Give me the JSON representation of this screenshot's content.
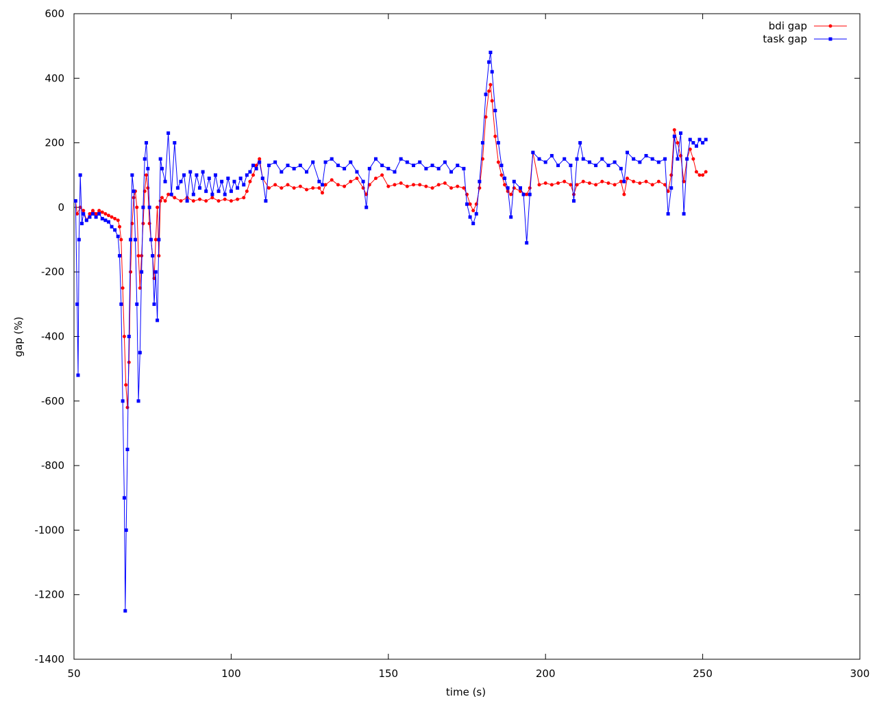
{
  "chart_data": {
    "type": "line",
    "xlabel": "time (s)",
    "ylabel": "gap (%)",
    "xlim": [
      50,
      300
    ],
    "ylim": [
      -1400,
      600
    ],
    "xticks": [
      50,
      100,
      150,
      200,
      250,
      300
    ],
    "yticks": [
      -1400,
      -1200,
      -1000,
      -800,
      -600,
      -400,
      -200,
      0,
      200,
      400,
      600
    ],
    "grid": false,
    "legend_position": "top-right",
    "series": [
      {
        "name": "bdi gap",
        "color": "#ff0000",
        "marker": "circle",
        "points": [
          [
            50.5,
            20
          ],
          [
            51,
            -20
          ],
          [
            52,
            0
          ],
          [
            53,
            -10
          ],
          [
            54,
            -40
          ],
          [
            55,
            -20
          ],
          [
            56,
            -10
          ],
          [
            57,
            -20
          ],
          [
            58,
            -10
          ],
          [
            59,
            -15
          ],
          [
            60,
            -20
          ],
          [
            61,
            -25
          ],
          [
            62,
            -30
          ],
          [
            63,
            -35
          ],
          [
            64,
            -40
          ],
          [
            64.5,
            -60
          ],
          [
            65,
            -100
          ],
          [
            65.5,
            -250
          ],
          [
            66,
            -400
          ],
          [
            66.5,
            -550
          ],
          [
            67,
            -620
          ],
          [
            67.5,
            -480
          ],
          [
            68,
            -200
          ],
          [
            68.5,
            -50
          ],
          [
            69,
            30
          ],
          [
            69.5,
            50
          ],
          [
            70,
            0
          ],
          [
            70.5,
            -150
          ],
          [
            71,
            -250
          ],
          [
            71.5,
            -150
          ],
          [
            72,
            -50
          ],
          [
            72.5,
            50
          ],
          [
            73,
            100
          ],
          [
            73.5,
            60
          ],
          [
            74,
            -50
          ],
          [
            74.5,
            -100
          ],
          [
            75,
            -150
          ],
          [
            75.5,
            -220
          ],
          [
            76,
            -100
          ],
          [
            76.5,
            0
          ],
          [
            77,
            -150
          ],
          [
            77.5,
            20
          ],
          [
            78,
            30
          ],
          [
            79,
            20
          ],
          [
            80,
            40
          ],
          [
            82,
            30
          ],
          [
            84,
            20
          ],
          [
            86,
            30
          ],
          [
            88,
            20
          ],
          [
            90,
            25
          ],
          [
            92,
            20
          ],
          [
            94,
            30
          ],
          [
            96,
            20
          ],
          [
            98,
            25
          ],
          [
            100,
            20
          ],
          [
            102,
            25
          ],
          [
            104,
            30
          ],
          [
            105,
            50
          ],
          [
            106,
            80
          ],
          [
            107,
            100
          ],
          [
            108,
            130
          ],
          [
            109,
            150
          ],
          [
            110,
            90
          ],
          [
            112,
            60
          ],
          [
            114,
            70
          ],
          [
            116,
            60
          ],
          [
            118,
            70
          ],
          [
            120,
            60
          ],
          [
            122,
            65
          ],
          [
            124,
            55
          ],
          [
            126,
            60
          ],
          [
            128,
            60
          ],
          [
            129,
            45
          ],
          [
            130,
            70
          ],
          [
            132,
            85
          ],
          [
            134,
            70
          ],
          [
            136,
            65
          ],
          [
            138,
            80
          ],
          [
            140,
            90
          ],
          [
            142,
            60
          ],
          [
            143,
            40
          ],
          [
            144,
            70
          ],
          [
            146,
            90
          ],
          [
            148,
            100
          ],
          [
            150,
            65
          ],
          [
            152,
            70
          ],
          [
            154,
            75
          ],
          [
            156,
            65
          ],
          [
            158,
            70
          ],
          [
            160,
            70
          ],
          [
            162,
            65
          ],
          [
            164,
            60
          ],
          [
            166,
            70
          ],
          [
            168,
            75
          ],
          [
            170,
            60
          ],
          [
            172,
            65
          ],
          [
            174,
            60
          ],
          [
            175,
            40
          ],
          [
            176,
            10
          ],
          [
            177,
            -10
          ],
          [
            178,
            10
          ],
          [
            179,
            60
          ],
          [
            180,
            150
          ],
          [
            181,
            280
          ],
          [
            182,
            360
          ],
          [
            182.5,
            380
          ],
          [
            183,
            330
          ],
          [
            184,
            220
          ],
          [
            185,
            140
          ],
          [
            186,
            100
          ],
          [
            187,
            70
          ],
          [
            188,
            50
          ],
          [
            189,
            40
          ],
          [
            190,
            60
          ],
          [
            192,
            50
          ],
          [
            194,
            40
          ],
          [
            195,
            60
          ],
          [
            196,
            170
          ],
          [
            198,
            70
          ],
          [
            200,
            75
          ],
          [
            202,
            70
          ],
          [
            204,
            75
          ],
          [
            206,
            80
          ],
          [
            208,
            70
          ],
          [
            209,
            40
          ],
          [
            210,
            70
          ],
          [
            212,
            80
          ],
          [
            214,
            75
          ],
          [
            216,
            70
          ],
          [
            218,
            80
          ],
          [
            220,
            75
          ],
          [
            222,
            70
          ],
          [
            224,
            80
          ],
          [
            225,
            40
          ],
          [
            226,
            90
          ],
          [
            228,
            80
          ],
          [
            230,
            75
          ],
          [
            232,
            80
          ],
          [
            234,
            70
          ],
          [
            236,
            80
          ],
          [
            238,
            70
          ],
          [
            239,
            50
          ],
          [
            240,
            100
          ],
          [
            241,
            240
          ],
          [
            242,
            200
          ],
          [
            243,
            160
          ],
          [
            244,
            80
          ],
          [
            245,
            150
          ],
          [
            246,
            180
          ],
          [
            247,
            150
          ],
          [
            248,
            110
          ],
          [
            249,
            100
          ],
          [
            250,
            100
          ],
          [
            251,
            110
          ]
        ]
      },
      {
        "name": "task gap",
        "color": "#0000ff",
        "marker": "square",
        "points": [
          [
            50.5,
            20
          ],
          [
            51,
            -300
          ],
          [
            51.3,
            -520
          ],
          [
            51.6,
            -100
          ],
          [
            52,
            100
          ],
          [
            52.5,
            -50
          ],
          [
            53,
            -20
          ],
          [
            54,
            -40
          ],
          [
            55,
            -30
          ],
          [
            56,
            -20
          ],
          [
            57,
            -30
          ],
          [
            58,
            -20
          ],
          [
            59,
            -35
          ],
          [
            60,
            -40
          ],
          [
            61,
            -45
          ],
          [
            62,
            -60
          ],
          [
            63,
            -70
          ],
          [
            64,
            -90
          ],
          [
            64.5,
            -150
          ],
          [
            65,
            -300
          ],
          [
            65.5,
            -600
          ],
          [
            66,
            -900
          ],
          [
            66.3,
            -1250
          ],
          [
            66.6,
            -1000
          ],
          [
            67,
            -750
          ],
          [
            67.5,
            -400
          ],
          [
            68,
            -100
          ],
          [
            68.5,
            100
          ],
          [
            69,
            50
          ],
          [
            69.5,
            -100
          ],
          [
            70,
            -300
          ],
          [
            70.5,
            -600
          ],
          [
            71,
            -450
          ],
          [
            71.5,
            -200
          ],
          [
            72,
            0
          ],
          [
            72.5,
            150
          ],
          [
            73,
            200
          ],
          [
            73.5,
            120
          ],
          [
            74,
            0
          ],
          [
            74.5,
            -100
          ],
          [
            75,
            -150
          ],
          [
            75.5,
            -300
          ],
          [
            76,
            -200
          ],
          [
            76.5,
            -350
          ],
          [
            77,
            -100
          ],
          [
            77.5,
            150
          ],
          [
            78,
            120
          ],
          [
            79,
            80
          ],
          [
            80,
            230
          ],
          [
            81,
            40
          ],
          [
            82,
            200
          ],
          [
            83,
            60
          ],
          [
            84,
            80
          ],
          [
            85,
            100
          ],
          [
            86,
            20
          ],
          [
            87,
            110
          ],
          [
            88,
            40
          ],
          [
            89,
            100
          ],
          [
            90,
            60
          ],
          [
            91,
            110
          ],
          [
            92,
            50
          ],
          [
            93,
            90
          ],
          [
            94,
            40
          ],
          [
            95,
            100
          ],
          [
            96,
            50
          ],
          [
            97,
            80
          ],
          [
            98,
            40
          ],
          [
            99,
            90
          ],
          [
            100,
            50
          ],
          [
            101,
            80
          ],
          [
            102,
            60
          ],
          [
            103,
            90
          ],
          [
            104,
            70
          ],
          [
            105,
            100
          ],
          [
            106,
            110
          ],
          [
            107,
            130
          ],
          [
            108,
            120
          ],
          [
            109,
            140
          ],
          [
            110,
            90
          ],
          [
            111,
            20
          ],
          [
            112,
            130
          ],
          [
            114,
            140
          ],
          [
            116,
            110
          ],
          [
            118,
            130
          ],
          [
            120,
            120
          ],
          [
            122,
            130
          ],
          [
            124,
            110
          ],
          [
            126,
            140
          ],
          [
            128,
            80
          ],
          [
            129,
            70
          ],
          [
            130,
            140
          ],
          [
            132,
            150
          ],
          [
            134,
            130
          ],
          [
            136,
            120
          ],
          [
            138,
            140
          ],
          [
            140,
            110
          ],
          [
            142,
            80
          ],
          [
            143,
            0
          ],
          [
            144,
            120
          ],
          [
            146,
            150
          ],
          [
            148,
            130
          ],
          [
            150,
            120
          ],
          [
            152,
            110
          ],
          [
            154,
            150
          ],
          [
            156,
            140
          ],
          [
            158,
            130
          ],
          [
            160,
            140
          ],
          [
            162,
            120
          ],
          [
            164,
            130
          ],
          [
            166,
            120
          ],
          [
            168,
            140
          ],
          [
            170,
            110
          ],
          [
            172,
            130
          ],
          [
            174,
            120
          ],
          [
            175,
            10
          ],
          [
            176,
            -30
          ],
          [
            177,
            -50
          ],
          [
            178,
            -20
          ],
          [
            179,
            80
          ],
          [
            180,
            200
          ],
          [
            181,
            350
          ],
          [
            182,
            450
          ],
          [
            182.5,
            480
          ],
          [
            183,
            420
          ],
          [
            184,
            300
          ],
          [
            185,
            200
          ],
          [
            186,
            130
          ],
          [
            187,
            90
          ],
          [
            188,
            60
          ],
          [
            189,
            -30
          ],
          [
            190,
            80
          ],
          [
            192,
            60
          ],
          [
            193,
            40
          ],
          [
            194,
            -110
          ],
          [
            195,
            40
          ],
          [
            196,
            170
          ],
          [
            198,
            150
          ],
          [
            200,
            140
          ],
          [
            202,
            160
          ],
          [
            204,
            130
          ],
          [
            206,
            150
          ],
          [
            208,
            130
          ],
          [
            209,
            20
          ],
          [
            210,
            150
          ],
          [
            211,
            200
          ],
          [
            212,
            150
          ],
          [
            214,
            140
          ],
          [
            216,
            130
          ],
          [
            218,
            150
          ],
          [
            220,
            130
          ],
          [
            222,
            140
          ],
          [
            224,
            120
          ],
          [
            225,
            80
          ],
          [
            226,
            170
          ],
          [
            228,
            150
          ],
          [
            230,
            140
          ],
          [
            232,
            160
          ],
          [
            234,
            150
          ],
          [
            236,
            140
          ],
          [
            238,
            150
          ],
          [
            239,
            -20
          ],
          [
            240,
            60
          ],
          [
            241,
            220
          ],
          [
            242,
            150
          ],
          [
            243,
            230
          ],
          [
            244,
            -20
          ],
          [
            245,
            150
          ],
          [
            246,
            210
          ],
          [
            247,
            200
          ],
          [
            248,
            190
          ],
          [
            249,
            210
          ],
          [
            250,
            200
          ],
          [
            251,
            210
          ]
        ]
      }
    ]
  }
}
